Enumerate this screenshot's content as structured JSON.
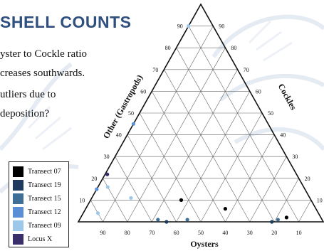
{
  "slide": {
    "title": "SHELL COUNTS",
    "bullets": [
      "yster to Cockle ratio",
      "creases southwards.",
      "utliers due to",
      "deposition?"
    ]
  },
  "chart_data": {
    "type": "ternary-scatter",
    "axes": {
      "bottom": {
        "label": "Oysters",
        "ticks": [
          90,
          80,
          70,
          60,
          50,
          40,
          30,
          20,
          10
        ]
      },
      "left": {
        "label": "Other (Gastropods)",
        "ticks": [
          10,
          20,
          30,
          40,
          50,
          60,
          70,
          80,
          90
        ]
      },
      "right": {
        "label": "Cockles",
        "ticks": [
          10,
          20,
          30,
          40,
          50,
          60,
          70,
          80,
          90
        ]
      }
    },
    "grid": true,
    "legend_position": "bottom-left",
    "series": [
      {
        "name": "Transect 07",
        "color": "#000000",
        "points": [
          {
            "oysters": 37,
            "cockles": 57,
            "other": 6
          },
          {
            "oysters": 14,
            "cockles": 84,
            "other": 2
          },
          {
            "oysters": 53,
            "cockles": 37,
            "other": 10
          }
        ]
      },
      {
        "name": "Transect 19",
        "color": "#1f3a5f",
        "points": [
          {
            "oysters": 21,
            "cockles": 79,
            "other": 0
          },
          {
            "oysters": 64,
            "cockles": 36,
            "other": 0
          }
        ]
      },
      {
        "name": "Transect 15",
        "color": "#3f6f96",
        "points": [
          {
            "oysters": 18,
            "cockles": 81,
            "other": 1
          },
          {
            "oysters": 67,
            "cockles": 32,
            "other": 1
          },
          {
            "oysters": 55,
            "cockles": 44,
            "other": 1
          }
        ]
      },
      {
        "name": "Transect 12",
        "color": "#5a8fd6",
        "points": [
          {
            "oysters": 55,
            "cockles": 0,
            "other": 45
          },
          {
            "oysters": 85,
            "cockles": 0,
            "other": 15
          }
        ]
      },
      {
        "name": "Transect 09",
        "color": "#9dc8ea",
        "points": [
          {
            "oysters": 10,
            "cockles": 0,
            "other": 90
          },
          {
            "oysters": 80,
            "cockles": 4,
            "other": 16
          },
          {
            "oysters": 90,
            "cockles": 6,
            "other": 4
          },
          {
            "oysters": 73,
            "cockles": 16,
            "other": 11
          }
        ]
      },
      {
        "name": "Locus X",
        "color": "#3a2f6b",
        "points": [
          {
            "oysters": 85,
            "cockles": 1,
            "other": 24
          }
        ]
      }
    ]
  },
  "colors": {
    "title": "#2f4f7f",
    "watermark": "#dde5f0"
  }
}
